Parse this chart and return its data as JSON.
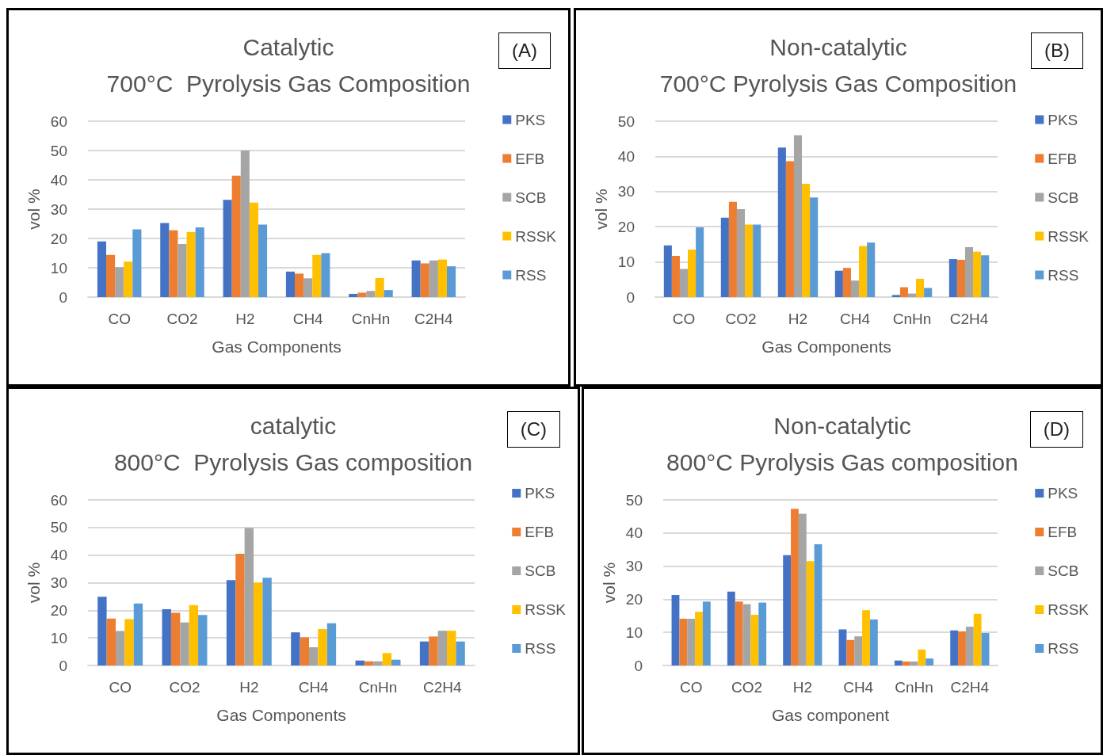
{
  "chart_data": [
    {
      "type": "bar",
      "title": "Catalytic\n700°C  Pyrolysis Gas Composition",
      "xlabel": "Gas Components",
      "ylabel": "vol %",
      "categories": [
        "CO",
        "CO2",
        "H2",
        "CH4",
        "CnHn",
        "C2H4"
      ],
      "ylim": [
        0,
        60
      ],
      "yticks": [
        0,
        10,
        20,
        30,
        40,
        50,
        60
      ],
      "grid": "y",
      "legend": "right",
      "annotations": [
        "(A)"
      ],
      "series": [
        {
          "name": "PKS",
          "color": "#4472c4",
          "values": [
            19.0,
            25.3,
            33.2,
            8.7,
            1.1,
            12.5
          ]
        },
        {
          "name": "EFB",
          "color": "#ed7d31",
          "values": [
            14.4,
            22.8,
            41.4,
            8.0,
            1.5,
            11.5
          ]
        },
        {
          "name": "SCB",
          "color": "#a5a5a5",
          "values": [
            10.2,
            18.1,
            50.0,
            6.4,
            2.1,
            12.5
          ]
        },
        {
          "name": "RSSK",
          "color": "#ffc000",
          "values": [
            12.1,
            22.2,
            32.2,
            14.4,
            6.5,
            12.8
          ]
        },
        {
          "name": "RSS",
          "color": "#5b9bd5",
          "values": [
            23.1,
            23.8,
            24.7,
            15.0,
            2.4,
            10.5
          ]
        }
      ]
    },
    {
      "type": "bar",
      "title": "Non-catalytic\n700°C Pyrolysis Gas Composition",
      "xlabel": "Gas Components",
      "ylabel": "vol %",
      "categories": [
        "CO",
        "CO2",
        "H2",
        "CH4",
        "CnHn",
        "C2H4"
      ],
      "ylim": [
        0,
        50
      ],
      "yticks": [
        0,
        10,
        20,
        30,
        40,
        50
      ],
      "grid": "y",
      "legend": "right",
      "annotations": [
        "(B)"
      ],
      "series": [
        {
          "name": "PKS",
          "color": "#4472c4",
          "values": [
            14.7,
            22.6,
            42.5,
            7.5,
            0.6,
            10.8
          ]
        },
        {
          "name": "EFB",
          "color": "#ed7d31",
          "values": [
            11.7,
            27.1,
            38.6,
            8.3,
            2.8,
            10.6
          ]
        },
        {
          "name": "SCB",
          "color": "#a5a5a5",
          "values": [
            8.0,
            25.0,
            46.0,
            4.7,
            1.0,
            14.2
          ]
        },
        {
          "name": "RSSK",
          "color": "#ffc000",
          "values": [
            13.5,
            20.6,
            32.2,
            14.5,
            5.2,
            12.9
          ]
        },
        {
          "name": "RSS",
          "color": "#5b9bd5",
          "values": [
            19.8,
            20.6,
            28.3,
            15.5,
            2.6,
            11.9
          ]
        }
      ]
    },
    {
      "type": "bar",
      "title": "catalytic\n800°C  Pyrolysis Gas composition",
      "xlabel": "Gas Components",
      "ylabel": "vol %",
      "categories": [
        "CO",
        "CO2",
        "H2",
        "CH4",
        "CnHn",
        "C2H4"
      ],
      "ylim": [
        0,
        60
      ],
      "yticks": [
        0,
        10,
        20,
        30,
        40,
        50,
        60
      ],
      "grid": "y",
      "legend": "right",
      "annotations": [
        "(C)"
      ],
      "series": [
        {
          "name": "PKS",
          "color": "#4472c4",
          "values": [
            24.9,
            20.4,
            30.9,
            12.0,
            1.8,
            8.7
          ]
        },
        {
          "name": "EFB",
          "color": "#ed7d31",
          "values": [
            17.0,
            19.1,
            40.5,
            10.2,
            1.5,
            10.5
          ]
        },
        {
          "name": "SCB",
          "color": "#a5a5a5",
          "values": [
            12.5,
            15.6,
            49.8,
            6.6,
            1.5,
            12.6
          ]
        },
        {
          "name": "RSSK",
          "color": "#ffc000",
          "values": [
            16.8,
            21.9,
            30.0,
            13.2,
            4.5,
            12.6
          ]
        },
        {
          "name": "RSS",
          "color": "#5b9bd5",
          "values": [
            22.5,
            18.3,
            31.8,
            15.3,
            2.1,
            8.7
          ]
        }
      ]
    },
    {
      "type": "bar",
      "title": "Non-catalytic\n800°C Pyrolysis Gas composition",
      "xlabel": "Gas component",
      "ylabel": "vol %",
      "categories": [
        "CO",
        "CO2",
        "H2",
        "CH4",
        "CnHn",
        "C2H4"
      ],
      "ylim": [
        0,
        50
      ],
      "yticks": [
        0,
        10,
        20,
        30,
        40,
        50
      ],
      "grid": "y",
      "legend": "right",
      "annotations": [
        "(D)"
      ],
      "series": [
        {
          "name": "PKS",
          "color": "#4472c4",
          "values": [
            21.3,
            22.3,
            33.3,
            10.9,
            1.5,
            10.6
          ]
        },
        {
          "name": "EFB",
          "color": "#ed7d31",
          "values": [
            14.1,
            19.3,
            47.3,
            7.7,
            1.2,
            10.3
          ]
        },
        {
          "name": "SCB",
          "color": "#a5a5a5",
          "values": [
            14.1,
            18.5,
            45.8,
            8.8,
            1.2,
            11.7
          ]
        },
        {
          "name": "RSSK",
          "color": "#ffc000",
          "values": [
            16.2,
            15.3,
            31.5,
            16.7,
            4.8,
            15.6
          ]
        },
        {
          "name": "RSS",
          "color": "#5b9bd5",
          "values": [
            19.3,
            19.0,
            36.6,
            13.9,
            2.1,
            9.8
          ]
        }
      ]
    }
  ]
}
